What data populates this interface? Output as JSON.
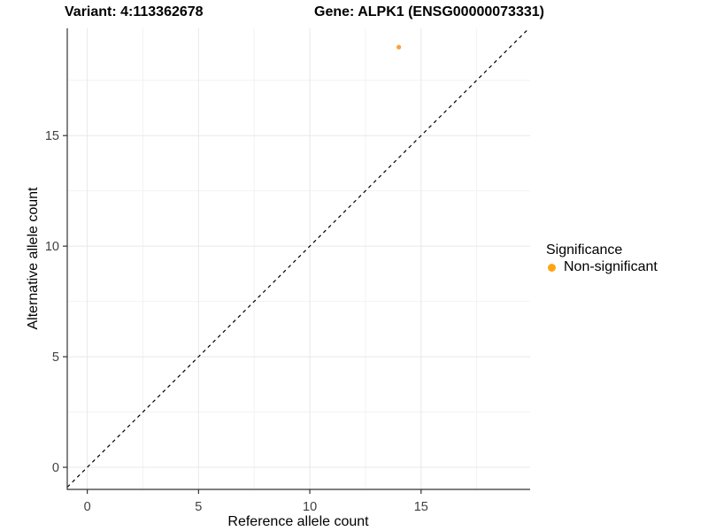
{
  "titles": {
    "variant": "Variant: 4:113362678",
    "gene": "Gene: ALPK1 (ENSG00000073331)"
  },
  "chart_data": {
    "type": "scatter",
    "title": "Variant: 4:113362678   Gene: ALPK1 (ENSG00000073331)",
    "xlabel": "Reference allele count",
    "ylabel": "Alternative allele count",
    "xlim": [
      -0.9,
      19.9
    ],
    "ylim": [
      -1.0,
      19.85
    ],
    "x_ticks": [
      0,
      5,
      10,
      15
    ],
    "y_ticks": [
      0,
      5,
      10,
      15
    ],
    "x_minor_ticks": [
      2.5,
      7.5,
      12.5,
      17.5
    ],
    "y_minor_ticks": [
      2.5,
      7.5,
      12.5,
      17.5
    ],
    "grid": true,
    "series": [
      {
        "name": "Non-significant",
        "color": "#FBA33C",
        "points": [
          {
            "x": 14,
            "y": 19
          }
        ]
      }
    ],
    "reference_line": {
      "kind": "identity",
      "dashed": true,
      "color": "#000000"
    },
    "legend": {
      "title": "Significance",
      "position": "right",
      "entries": [
        {
          "label": "Non-significant",
          "color": "#FFA412"
        }
      ]
    }
  },
  "colors": {
    "background": "#FFFFFF",
    "axis_line": "#333333",
    "tick_label": "#404040",
    "grid_major": "#E8E8E8",
    "grid_minor": "#F2F2F2"
  }
}
